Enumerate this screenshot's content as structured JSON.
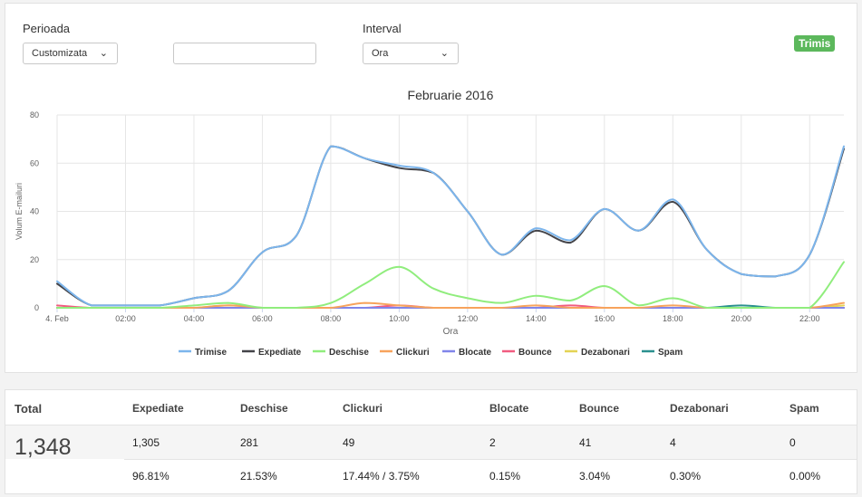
{
  "filters": {
    "period_label": "Perioada",
    "period_value": "Customizata",
    "date_value": "",
    "interval_label": "Interval",
    "interval_value": "Ora",
    "status_badge": "Trimis"
  },
  "chart_data": {
    "type": "line",
    "title": "Februarie 2016",
    "xlabel": "Ora",
    "ylabel": "Volum E-mailuri",
    "ylim": [
      0,
      80
    ],
    "yticks": [
      0,
      20,
      40,
      60,
      80
    ],
    "xlim": [
      0,
      23
    ],
    "xticks": [
      {
        "x": 0,
        "label": "4. Feb"
      },
      {
        "x": 2,
        "label": "02:00"
      },
      {
        "x": 4,
        "label": "04:00"
      },
      {
        "x": 6,
        "label": "06:00"
      },
      {
        "x": 8,
        "label": "08:00"
      },
      {
        "x": 10,
        "label": "10:00"
      },
      {
        "x": 12,
        "label": "12:00"
      },
      {
        "x": 14,
        "label": "14:00"
      },
      {
        "x": 16,
        "label": "16:00"
      },
      {
        "x": 18,
        "label": "18:00"
      },
      {
        "x": 20,
        "label": "20:00"
      },
      {
        "x": 22,
        "label": "22:00"
      }
    ],
    "grid": true,
    "legend_position": "bottom",
    "x": [
      0,
      1,
      2,
      3,
      4,
      5,
      6,
      7,
      8,
      9,
      10,
      11,
      12,
      13,
      14,
      15,
      16,
      17,
      18,
      19,
      20,
      21,
      22,
      23
    ],
    "series": [
      {
        "name": "Trimise",
        "color": "#7cb5ec",
        "values": [
          11,
          1,
          1,
          1,
          4,
          7,
          23,
          30,
          67,
          62,
          59,
          56,
          40,
          22,
          33,
          28,
          41,
          32,
          45,
          24,
          14,
          13,
          22,
          67
        ]
      },
      {
        "name": "Expediate",
        "color": "#434348",
        "values": [
          10,
          1,
          1,
          1,
          4,
          7,
          23,
          30,
          67,
          62,
          58,
          56,
          40,
          22,
          32,
          27,
          41,
          32,
          44,
          24,
          14,
          13,
          22,
          66
        ]
      },
      {
        "name": "Deschise",
        "color": "#90ed7d",
        "values": [
          0,
          0,
          0,
          0,
          1,
          2,
          0,
          0,
          2,
          10,
          17,
          8,
          4,
          2,
          5,
          3,
          9,
          1,
          4,
          0,
          0,
          0,
          0,
          19
        ]
      },
      {
        "name": "Clickuri",
        "color": "#f7a35c",
        "values": [
          0,
          0,
          0,
          0,
          0,
          1,
          0,
          0,
          0,
          2,
          1,
          0,
          0,
          0,
          1,
          0,
          0,
          0,
          1,
          0,
          0,
          0,
          0,
          2
        ]
      },
      {
        "name": "Blocate",
        "color": "#8085e9",
        "values": [
          0,
          0,
          0,
          0,
          0,
          0,
          0,
          0,
          0,
          0,
          0,
          0,
          0,
          0,
          0,
          0,
          0,
          0,
          0,
          0,
          0,
          0,
          0,
          0
        ]
      },
      {
        "name": "Bounce",
        "color": "#f15c80",
        "values": [
          1,
          0,
          0,
          0,
          0,
          0,
          0,
          0,
          0,
          0,
          1,
          0,
          0,
          0,
          0,
          1,
          0,
          0,
          0,
          0,
          0,
          0,
          0,
          0
        ]
      },
      {
        "name": "Dezabonari",
        "color": "#e4d354",
        "values": [
          0,
          0,
          0,
          0,
          0,
          1,
          0,
          0,
          0,
          0,
          0,
          0,
          0,
          0,
          0,
          0,
          0,
          0,
          0,
          0,
          0,
          0,
          0,
          1
        ]
      },
      {
        "name": "Spam",
        "color": "#2b908f",
        "values": [
          0,
          0,
          0,
          0,
          0,
          0,
          0,
          0,
          0,
          0,
          0,
          0,
          0,
          0,
          0,
          0,
          0,
          0,
          0,
          0,
          1,
          0,
          0,
          0
        ]
      }
    ]
  },
  "stats": {
    "total_label": "Total",
    "total_value": "1,348",
    "columns": [
      {
        "label": "Expediate",
        "count": "1,305",
        "percent": "96.81%"
      },
      {
        "label": "Deschise",
        "count": "281",
        "percent": "21.53%"
      },
      {
        "label": "Clickuri",
        "count": "49",
        "percent": "17.44% / 3.75%"
      },
      {
        "label": "Blocate",
        "count": "2",
        "percent": "0.15%"
      },
      {
        "label": "Bounce",
        "count": "41",
        "percent": "3.04%"
      },
      {
        "label": "Dezabonari",
        "count": "4",
        "percent": "0.30%"
      },
      {
        "label": "Spam",
        "count": "0",
        "percent": "0.00%"
      }
    ]
  }
}
